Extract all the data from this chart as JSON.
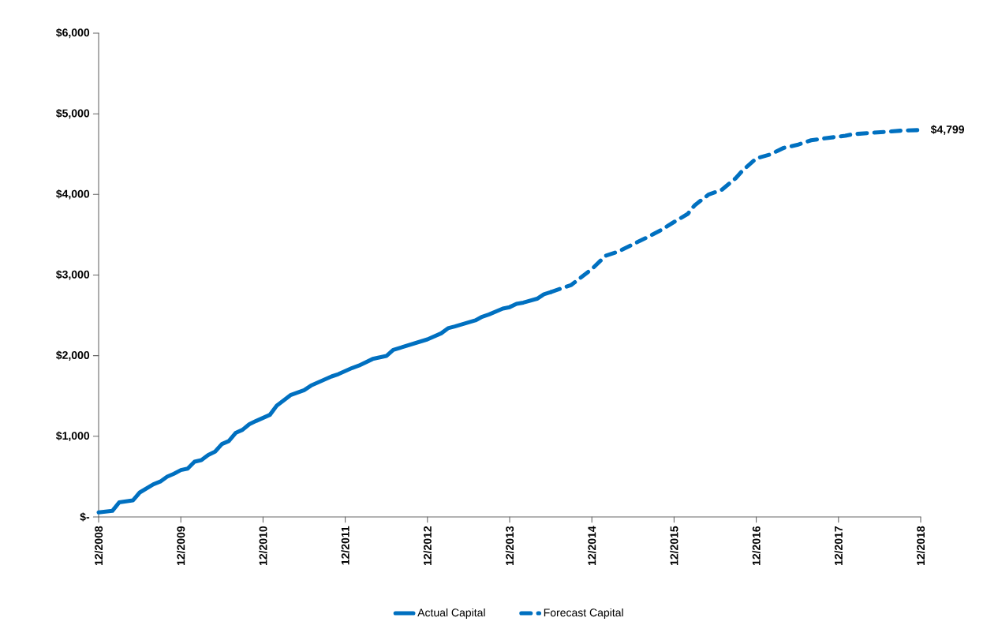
{
  "chart_data": {
    "type": "line",
    "xlim": [
      "2008-12",
      "2018-12"
    ],
    "xticks": [
      {
        "value": "2008-12",
        "label": "12/2008"
      },
      {
        "value": "2009-12",
        "label": "12/2009"
      },
      {
        "value": "2010-12",
        "label": "12/2010"
      },
      {
        "value": "2011-12",
        "label": "12/2011"
      },
      {
        "value": "2012-12",
        "label": "12/2012"
      },
      {
        "value": "2013-12",
        "label": "12/2013"
      },
      {
        "value": "2014-12",
        "label": "12/2014"
      },
      {
        "value": "2015-12",
        "label": "12/2015"
      },
      {
        "value": "2016-12",
        "label": "12/2016"
      },
      {
        "value": "2017-12",
        "label": "12/2017"
      },
      {
        "value": "2018-12",
        "label": "12/2018"
      }
    ],
    "ylim": [
      0,
      6000
    ],
    "yticks": [
      {
        "value": 0,
        "label": "$-"
      },
      {
        "value": 1000,
        "label": "$1,000"
      },
      {
        "value": 2000,
        "label": "$2,000"
      },
      {
        "value": 3000,
        "label": "$3,000"
      },
      {
        "value": 4000,
        "label": "$4,000"
      },
      {
        "value": 5000,
        "label": "$5,000"
      },
      {
        "value": 6000,
        "label": "$6,000"
      }
    ],
    "grid": false,
    "legend": "bottom",
    "series": [
      {
        "name": "Actual Capital",
        "color": "#0070c0",
        "line_style": "solid",
        "x": [
          "2008-12",
          "2009-02",
          "2009-03",
          "2009-05",
          "2009-06",
          "2009-08",
          "2009-09",
          "2009-10",
          "2009-11",
          "2009-12",
          "2010-01",
          "2010-02",
          "2010-03",
          "2010-04",
          "2010-05",
          "2010-06",
          "2010-07",
          "2010-08",
          "2010-09",
          "2010-10",
          "2010-11",
          "2011-01",
          "2011-02",
          "2011-04",
          "2011-06",
          "2011-07",
          "2011-10",
          "2011-11",
          "2012-01",
          "2012-02",
          "2012-04",
          "2012-06",
          "2012-07",
          "2012-12",
          "2013-02",
          "2013-03",
          "2013-04",
          "2013-07",
          "2013-08",
          "2013-09",
          "2013-11",
          "2013-12",
          "2014-01",
          "2014-02",
          "2014-04",
          "2014-05",
          "2014-06"
        ],
        "values": [
          57,
          75,
          180,
          205,
          303,
          405,
          438,
          499,
          536,
          581,
          600,
          685,
          705,
          768,
          810,
          904,
          941,
          1042,
          1080,
          1150,
          1191,
          1266,
          1379,
          1510,
          1573,
          1629,
          1742,
          1771,
          1847,
          1877,
          1959,
          1996,
          2071,
          2202,
          2277,
          2340,
          2363,
          2438,
          2483,
          2512,
          2584,
          2602,
          2643,
          2658,
          2706,
          2762,
          2788
        ]
      },
      {
        "name": "Forecast Capital",
        "color": "#0070c0",
        "line_style": "dashed",
        "x": [
          "2014-06",
          "2014-09",
          "2014-12",
          "2015-02",
          "2015-04",
          "2015-06",
          "2015-08",
          "2015-10",
          "2015-12",
          "2016-02",
          "2016-03",
          "2016-05",
          "2016-07",
          "2016-09",
          "2016-10",
          "2016-12",
          "2017-02",
          "2017-04",
          "2017-06",
          "2017-08",
          "2017-10",
          "2018-01",
          "2018-02",
          "2018-05",
          "2018-07",
          "2018-09",
          "2018-12"
        ],
        "values": [
          2788,
          2877,
          3074,
          3238,
          3296,
          3382,
          3464,
          3553,
          3658,
          3758,
          3864,
          3996,
          4059,
          4201,
          4296,
          4446,
          4495,
          4577,
          4614,
          4671,
          4696,
          4727,
          4746,
          4765,
          4777,
          4790,
          4799
        ]
      }
    ],
    "annotations": [
      {
        "text": "$4,799",
        "x": "2018-12",
        "y": 4799
      }
    ]
  }
}
